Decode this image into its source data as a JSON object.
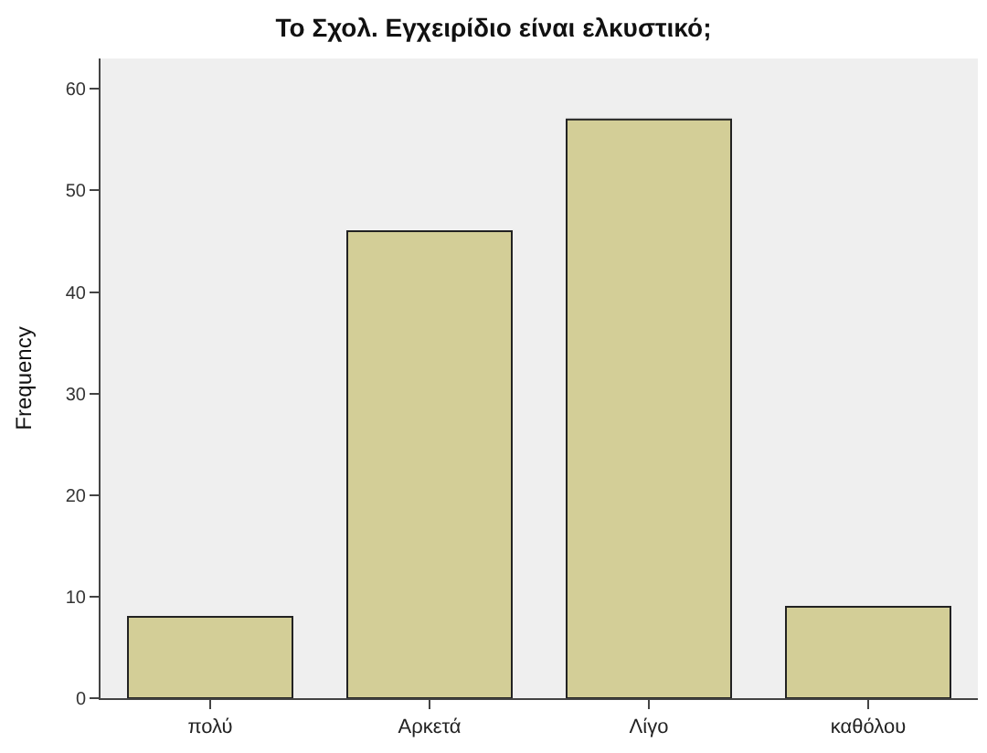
{
  "chart_data": {
    "type": "bar",
    "title": "Το Σχολ. Εγχειρίδιο είναι ελκυστικό;",
    "ylabel": "Frequency",
    "categories": [
      "πολύ",
      "Αρκετά",
      "Λίγο",
      "καθόλου"
    ],
    "values": [
      8,
      46,
      57,
      9
    ],
    "color": "#d3ce97",
    "ylim": [
      0,
      63
    ],
    "yticks": [
      0,
      10,
      20,
      30,
      40,
      50,
      60
    ],
    "grid": false
  }
}
